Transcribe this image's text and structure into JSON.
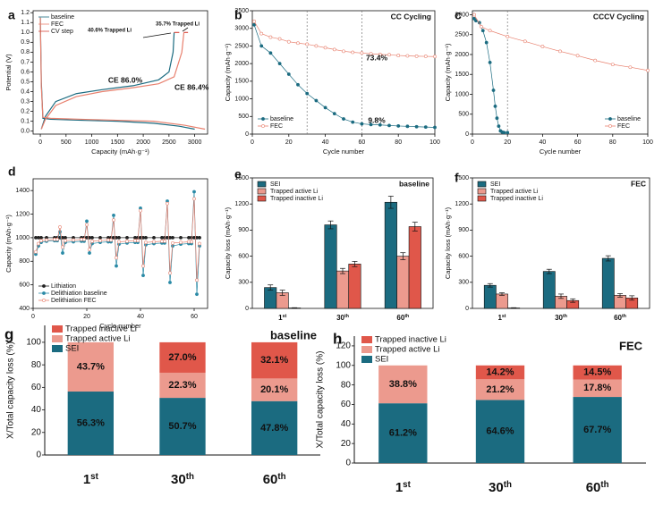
{
  "chart_data": [
    {
      "panel": "a",
      "type": "line",
      "x_label": "Capacity (mAh·g⁻¹)",
      "y_label": "Potential (V)",
      "xlim": [
        -140,
        3250
      ],
      "xticks": [
        0,
        500,
        1000,
        1500,
        2000,
        2500,
        3000
      ],
      "ylim": [
        -0.03,
        1.22
      ],
      "yticks": [
        {
          "value": 0,
          "label": "0.0"
        },
        0.1,
        0.2,
        0.3,
        0.4,
        0.5,
        0.6,
        0.7,
        0.8,
        0.9,
        {
          "value": 1,
          "label": "1.0"
        },
        1.1,
        1.2
      ],
      "legend": "upper left",
      "series": [
        {
          "name": "baseline",
          "color": "#1b6b80",
          "x": [
            0,
            20,
            50,
            200,
            800,
            1500,
            2200,
            2700,
            3000,
            3000,
            20,
            100,
            300,
            700,
            1200,
            1800,
            2300,
            2500,
            2580,
            2600
          ],
          "values": [
            1.15,
            0.5,
            0.13,
            0.12,
            0.11,
            0.1,
            0.08,
            0.05,
            0.02,
            null,
            0.02,
            0.15,
            0.3,
            0.38,
            0.42,
            0.46,
            0.52,
            0.6,
            0.8,
            1.0
          ]
        },
        {
          "name": "FEC",
          "color": "#e8806e",
          "x": [
            0,
            20,
            50,
            200,
            800,
            1500,
            2200,
            2800,
            3200,
            3200,
            20,
            100,
            300,
            700,
            1200,
            1800,
            2300,
            2600,
            2750,
            2790
          ],
          "values": [
            1.15,
            0.45,
            0.14,
            0.13,
            0.12,
            0.11,
            0.1,
            0.06,
            0.02,
            null,
            0.02,
            0.12,
            0.26,
            0.35,
            0.4,
            0.44,
            0.48,
            0.55,
            0.8,
            1.0
          ]
        },
        {
          "name": "CV step",
          "color": "#d8483c",
          "x": [
            2600,
            2700,
            2700,
            2790,
            2870
          ],
          "values": [
            1,
            1,
            null,
            1,
            1
          ]
        }
      ],
      "annotations": [
        {
          "text": "40.6% Trapped Li",
          "color": "#1b6b80"
        },
        {
          "text": "35.7% Trapped Li",
          "color": "#d8483c"
        },
        {
          "text": "CE 86.0%",
          "color": "#1b6b80"
        },
        {
          "text": "CE 86.4%",
          "color": "#e8806e"
        }
      ]
    },
    {
      "panel": "b",
      "type": "line",
      "title": "CC Cycling",
      "title_color": "#111",
      "x_label": "Cycle number",
      "y_label": "Capacity (mAh·g⁻¹)",
      "xlim": [
        0,
        100
      ],
      "xticks": [
        0,
        20,
        40,
        60,
        80,
        100
      ],
      "ylim": [
        0,
        3500
      ],
      "yticks": [
        0,
        500,
        1000,
        1500,
        2000,
        2500,
        3000,
        3500
      ],
      "vlines": [
        30,
        60
      ],
      "legend": "lower left",
      "x": [
        1,
        5,
        10,
        15,
        20,
        25,
        30,
        35,
        40,
        45,
        50,
        55,
        60,
        65,
        70,
        75,
        80,
        85,
        90,
        95,
        100
      ],
      "series": [
        {
          "name": "baseline",
          "color": "#1b6b80",
          "marker": true,
          "marker_filled": true,
          "values": [
            3100,
            2500,
            2300,
            2000,
            1700,
            1400,
            1150,
            950,
            750,
            580,
            430,
            340,
            290,
            270,
            260,
            245,
            230,
            220,
            210,
            200,
            190
          ]
        },
        {
          "name": "FEC",
          "color": "#e8806e",
          "marker": true,
          "marker_filled": false,
          "values": [
            3200,
            2850,
            2750,
            2700,
            2620,
            2580,
            2550,
            2500,
            2450,
            2400,
            2350,
            2320,
            2300,
            2280,
            2260,
            2250,
            2230,
            2220,
            2210,
            2205,
            2200
          ]
        }
      ],
      "annotations": [
        {
          "text": "73.4%",
          "color": "#e8806e"
        },
        {
          "text": "9.8%",
          "color": "#1b6b80"
        }
      ]
    },
    {
      "panel": "c",
      "type": "line",
      "title": "CCCV Cycling",
      "title_color": "#111",
      "x_label": "Cycle number",
      "y_label": "Capacity (mAh·g⁻¹)",
      "xlim": [
        0,
        100
      ],
      "xticks": [
        0,
        20,
        40,
        60,
        80,
        100
      ],
      "ylim": [
        0,
        3100
      ],
      "yticks": [
        0,
        500,
        1000,
        1500,
        2000,
        2500,
        3000
      ],
      "vlines": [
        20
      ],
      "legend": "lower right",
      "series": [
        {
          "name": "baseline",
          "color": "#1b6b80",
          "marker": true,
          "marker_filled": true,
          "x": [
            1,
            2,
            4,
            6,
            8,
            10,
            12,
            13,
            14,
            15,
            16,
            17,
            18,
            20
          ],
          "values": [
            2900,
            2850,
            2800,
            2600,
            2300,
            1800,
            1100,
            700,
            400,
            200,
            80,
            50,
            40,
            40
          ]
        },
        {
          "name": "FEC",
          "color": "#e8806e",
          "marker": true,
          "marker_filled": false,
          "x": [
            1,
            5,
            10,
            20,
            30,
            40,
            50,
            60,
            70,
            80,
            90,
            100
          ],
          "values": [
            3000,
            2700,
            2600,
            2450,
            2330,
            2200,
            2080,
            1970,
            1850,
            1750,
            1680,
            1600
          ]
        }
      ]
    },
    {
      "panel": "d",
      "type": "line",
      "x_label": "Cycle number",
      "y_label": "Capacity (mAh·g⁻¹)",
      "xlim": [
        0,
        65
      ],
      "xticks": [
        0,
        20,
        40,
        60
      ],
      "ylim": [
        400,
        1500
      ],
      "yticks": [
        400,
        600,
        800,
        1000,
        1200,
        1400
      ],
      "legend": "lower left",
      "x": [
        1,
        2,
        3,
        5,
        8,
        9,
        10,
        11,
        12,
        15,
        18,
        19,
        20,
        21,
        22,
        25,
        28,
        29,
        30,
        31,
        32,
        35,
        38,
        39,
        40,
        41,
        42,
        45,
        48,
        49,
        50,
        51,
        52,
        55,
        58,
        59,
        60,
        61,
        62
      ],
      "series": [
        {
          "name": "Lithiation",
          "color": "#222222",
          "marker": true,
          "marker_filled": true,
          "values": [
            1000,
            1000,
            1000,
            1000,
            1000,
            1000,
            1000,
            1000,
            1000,
            1000,
            1000,
            1000,
            1000,
            1000,
            1000,
            1000,
            1000,
            1000,
            1000,
            1000,
            1000,
            1000,
            1000,
            1000,
            1000,
            1000,
            1000,
            1000,
            1000,
            1000,
            1000,
            1000,
            1000,
            1000,
            1000,
            1000,
            1000,
            1000,
            1000
          ]
        },
        {
          "name": "Delithiation baseline",
          "color": "#2a8aa6",
          "marker": true,
          "marker_filled": true,
          "values": [
            860,
            930,
            960,
            970,
            975,
            975,
            1050,
            870,
            960,
            965,
            970,
            970,
            1140,
            870,
            950,
            960,
            965,
            965,
            1190,
            760,
            945,
            955,
            960,
            960,
            1250,
            680,
            940,
            950,
            955,
            955,
            1310,
            620,
            930,
            945,
            950,
            950,
            1390,
            520,
            930
          ]
        },
        {
          "name": "Delithiation FEC",
          "color": "#e8806e",
          "marker": true,
          "marker_filled": false,
          "values": [
            880,
            950,
            975,
            980,
            985,
            985,
            1090,
            920,
            975,
            980,
            985,
            985,
            1110,
            900,
            970,
            975,
            980,
            980,
            1150,
            830,
            965,
            970,
            975,
            975,
            1230,
            760,
            960,
            965,
            970,
            970,
            1290,
            700,
            955,
            960,
            965,
            965,
            1330,
            640,
            950
          ]
        }
      ]
    },
    {
      "panel": "e",
      "type": "bar",
      "title": "baseline",
      "title_color": "#1b6b80",
      "y_label": "Capacity loss (mAh·g⁻¹)",
      "categories": [
        "1st",
        "30th",
        "60th"
      ],
      "ylim": [
        0,
        1500
      ],
      "yticks": [
        0,
        300,
        600,
        900,
        1200,
        1500
      ],
      "legend": "upper left",
      "series": [
        {
          "name": "SEI",
          "color": "#1b6b80",
          "values": [
            240,
            960,
            1220
          ],
          "errors": [
            30,
            45,
            70
          ]
        },
        {
          "name": "Trapped active Li",
          "color": "#ec9a8e",
          "values": [
            180,
            430,
            600
          ],
          "errors": [
            30,
            30,
            40
          ]
        },
        {
          "name": "Trapped inactive Li",
          "color": "#e0574a",
          "values": [
            5,
            510,
            940
          ],
          "errors": [
            3,
            30,
            50
          ]
        }
      ]
    },
    {
      "panel": "f",
      "type": "bar",
      "title": "FEC",
      "title_color": "#e0574a",
      "y_label": "Capacity loss (mAh·g⁻¹)",
      "categories": [
        "1st",
        "30th",
        "60th"
      ],
      "ylim": [
        0,
        1500
      ],
      "yticks": [
        0,
        300,
        600,
        900,
        1200,
        1500
      ],
      "legend": "upper left",
      "series": [
        {
          "name": "SEI",
          "color": "#1b6b80",
          "values": [
            265,
            425,
            575
          ],
          "errors": [
            20,
            25,
            30
          ]
        },
        {
          "name": "Trapped active Li",
          "color": "#ec9a8e",
          "values": [
            165,
            140,
            150
          ],
          "errors": [
            15,
            25,
            20
          ]
        },
        {
          "name": "Trapped inactive Li",
          "color": "#e0574a",
          "values": [
            5,
            90,
            120
          ],
          "errors": [
            3,
            20,
            25
          ]
        }
      ]
    },
    {
      "panel": "g",
      "type": "stacked_bar",
      "title": "baseline",
      "title_color": "#1b6b80",
      "y_label": "X/Total capacity loss (%)",
      "categories": [
        "1st",
        "30th",
        "60th"
      ],
      "ylim": [
        0,
        115
      ],
      "yticks": [
        0,
        20,
        40,
        60,
        80,
        100
      ],
      "legend": "upper left",
      "series": [
        {
          "name": "SEI",
          "color": "#1b6b80",
          "values": [
            56.3,
            50.7,
            47.8
          ],
          "value_labels": [
            "56.3%",
            "50.7%",
            "47.8%"
          ]
        },
        {
          "name": "Trapped active Li",
          "color": "#ec9a8e",
          "values": [
            43.7,
            22.3,
            20.1
          ],
          "value_labels": [
            "43.7%",
            "22.3%",
            "20.1%"
          ]
        },
        {
          "name": "Trapped inactive Li",
          "color": "#e0574a",
          "values": [
            null,
            27.0,
            32.1
          ],
          "value_labels": [
            null,
            "27.0%",
            "32.1%"
          ]
        }
      ]
    },
    {
      "panel": "h",
      "type": "stacked_bar",
      "title": "FEC",
      "title_color": "#e0574a",
      "y_label": "X/Total capacity loss (%)",
      "categories": [
        "1st",
        "30th",
        "60th"
      ],
      "ylim": [
        0,
        130
      ],
      "yticks": [
        0,
        20,
        40,
        60,
        80,
        100,
        120
      ],
      "legend": "upper left",
      "series": [
        {
          "name": "SEI",
          "color": "#1b6b80",
          "values": [
            61.2,
            64.6,
            67.7
          ],
          "value_labels": [
            "61.2%",
            "64.6%",
            "67.7%"
          ]
        },
        {
          "name": "Trapped active Li",
          "color": "#ec9a8e",
          "values": [
            38.8,
            21.2,
            17.8
          ],
          "value_labels": [
            "38.8%",
            "21.2%",
            "17.8%"
          ]
        },
        {
          "name": "Trapped inactive Li",
          "color": "#e0574a",
          "values": [
            null,
            14.2,
            14.5
          ],
          "value_labels": [
            null,
            "14.2%",
            "14.5%"
          ]
        }
      ]
    }
  ]
}
